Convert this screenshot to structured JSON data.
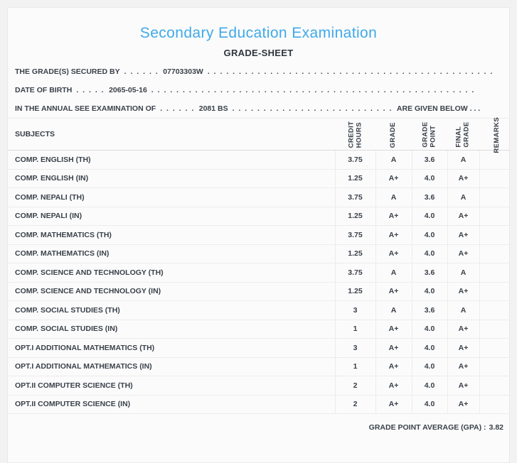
{
  "theme": {
    "accent_blue": "#3fa9e8",
    "text_dark": "#3a4149",
    "border_light": "#ececec",
    "border_header": "#dcdcdc",
    "panel_bg": "#fbfbfc",
    "page_bg": "#f2f2f3"
  },
  "header": {
    "title": "Secondary Education Examination",
    "subtitle": "GRADE-SHEET"
  },
  "info_lines": [
    {
      "label": "THE GRADE(S) SECURED BY",
      "pre_dots": ". . . . . .",
      "value": "07703303W",
      "post_dots": ". . . . . . . . . . . . . . . . . . . . . . . . . . . . . . . . . . . . . . . . . . . . . .",
      "suffix": ""
    },
    {
      "label": "DATE OF BIRTH",
      "pre_dots": ". . . . .",
      "value": "2065-05-16",
      "post_dots": ". . . . . . . . . . . . . . . . . . . . . . . . . . . . . . . . . . . . . . . . . . . . . . . . . . . .",
      "suffix": ""
    },
    {
      "label": "IN THE ANNUAL SEE EXAMINATION OF",
      "pre_dots": ". . . . . .",
      "value": "2081 BS",
      "post_dots": ". . . . . . . . . . . . . . . . . . . . . . . . . .",
      "suffix": "ARE GIVEN BELOW . . ."
    }
  ],
  "table": {
    "subjects_header": "SUBJECTS",
    "columns": [
      {
        "key": "credit_hours",
        "lines": [
          "CREDIT",
          "HOURS"
        ]
      },
      {
        "key": "grade",
        "lines": [
          "GRADE"
        ]
      },
      {
        "key": "grade_point",
        "lines": [
          "GRADE",
          "POINT"
        ]
      },
      {
        "key": "final_grade",
        "lines": [
          "FINAL",
          "GRADE"
        ]
      },
      {
        "key": "remarks",
        "lines": [
          "REMARKS"
        ]
      }
    ],
    "rows": [
      {
        "subject": "COMP. ENGLISH (TH)",
        "credit_hours": "3.75",
        "grade": "A",
        "grade_point": "3.6",
        "final_grade": "A",
        "remarks": ""
      },
      {
        "subject": "COMP. ENGLISH (IN)",
        "credit_hours": "1.25",
        "grade": "A+",
        "grade_point": "4.0",
        "final_grade": "A+",
        "remarks": ""
      },
      {
        "subject": "COMP. NEPALI (TH)",
        "credit_hours": "3.75",
        "grade": "A",
        "grade_point": "3.6",
        "final_grade": "A",
        "remarks": ""
      },
      {
        "subject": "COMP. NEPALI (IN)",
        "credit_hours": "1.25",
        "grade": "A+",
        "grade_point": "4.0",
        "final_grade": "A+",
        "remarks": ""
      },
      {
        "subject": "COMP. MATHEMATICS (TH)",
        "credit_hours": "3.75",
        "grade": "A+",
        "grade_point": "4.0",
        "final_grade": "A+",
        "remarks": ""
      },
      {
        "subject": "COMP. MATHEMATICS (IN)",
        "credit_hours": "1.25",
        "grade": "A+",
        "grade_point": "4.0",
        "final_grade": "A+",
        "remarks": ""
      },
      {
        "subject": "COMP. SCIENCE AND TECHNOLOGY (TH)",
        "credit_hours": "3.75",
        "grade": "A",
        "grade_point": "3.6",
        "final_grade": "A",
        "remarks": ""
      },
      {
        "subject": "COMP. SCIENCE AND TECHNOLOGY (IN)",
        "credit_hours": "1.25",
        "grade": "A+",
        "grade_point": "4.0",
        "final_grade": "A+",
        "remarks": ""
      },
      {
        "subject": "COMP. SOCIAL STUDIES (TH)",
        "credit_hours": "3",
        "grade": "A",
        "grade_point": "3.6",
        "final_grade": "A",
        "remarks": ""
      },
      {
        "subject": "COMP. SOCIAL STUDIES (IN)",
        "credit_hours": "1",
        "grade": "A+",
        "grade_point": "4.0",
        "final_grade": "A+",
        "remarks": ""
      },
      {
        "subject": "OPT.I ADDITIONAL MATHEMATICS (TH)",
        "credit_hours": "3",
        "grade": "A+",
        "grade_point": "4.0",
        "final_grade": "A+",
        "remarks": ""
      },
      {
        "subject": "OPT.I ADDITIONAL MATHEMATICS (IN)",
        "credit_hours": "1",
        "grade": "A+",
        "grade_point": "4.0",
        "final_grade": "A+",
        "remarks": ""
      },
      {
        "subject": "OPT.II COMPUTER SCIENCE (TH)",
        "credit_hours": "2",
        "grade": "A+",
        "grade_point": "4.0",
        "final_grade": "A+",
        "remarks": ""
      },
      {
        "subject": "OPT.II COMPUTER SCIENCE (IN)",
        "credit_hours": "2",
        "grade": "A+",
        "grade_point": "4.0",
        "final_grade": "A+",
        "remarks": ""
      }
    ]
  },
  "footer": {
    "gpa_label": "GRADE POINT AVERAGE (GPA) :",
    "gpa_value": "3.82"
  }
}
